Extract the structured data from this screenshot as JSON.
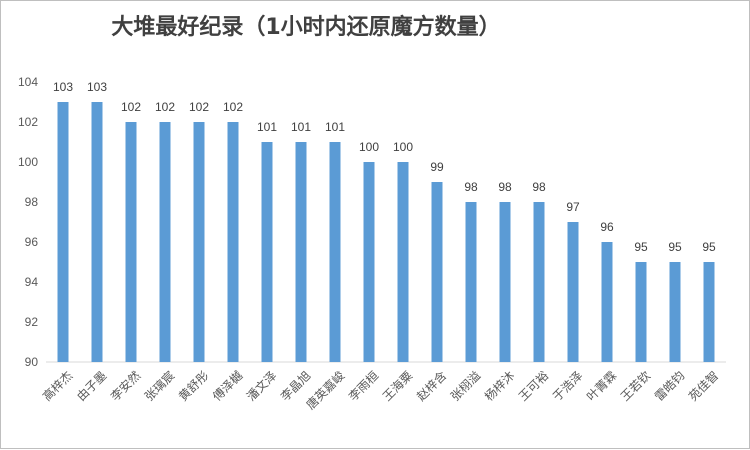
{
  "chart_data": {
    "type": "bar",
    "title": "大堆最好纪录（1小时内还原魔方数量）",
    "xlabel": "",
    "ylabel": "",
    "categories": [
      "高梓杰",
      "由子墨",
      "李安然",
      "张璃宸",
      "黄舒彤",
      "傅泽樾",
      "潘文泽",
      "李晶旭",
      "唐英嘉峻",
      "李雨桓",
      "王海粟",
      "赵梓含",
      "张栩溢",
      "杨梓沐",
      "王可裕",
      "于浩泽",
      "叶菁霖",
      "王若钦",
      "雷皓钧",
      "苑佳智"
    ],
    "values": [
      103,
      103,
      102,
      102,
      102,
      102,
      101,
      101,
      101,
      100,
      100,
      99,
      98,
      98,
      98,
      97,
      96,
      95,
      95,
      95
    ],
    "ylim": [
      90,
      104
    ],
    "yticks": [
      90,
      92,
      94,
      96,
      98,
      100,
      102,
      104
    ],
    "grid": false,
    "legend": "none",
    "bar_color": "#5b9bd5"
  }
}
